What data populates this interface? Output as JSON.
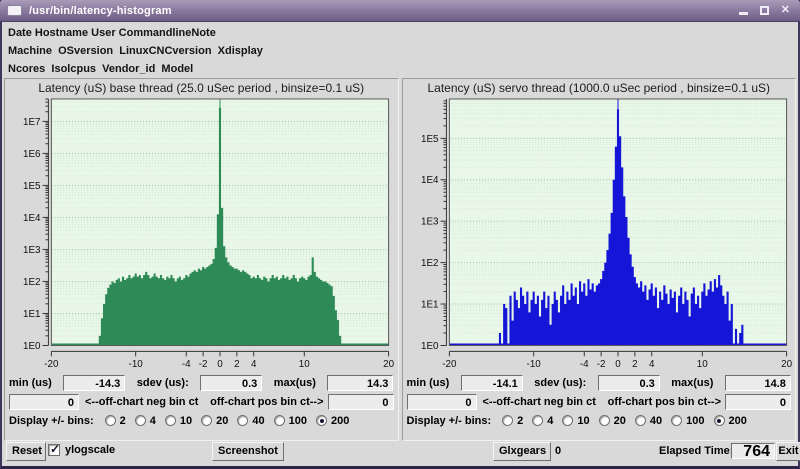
{
  "window": {
    "title": "/usr/bin/latency-histogram",
    "controls": {
      "minimize": "minimize",
      "maximize": "maximize",
      "close": "close"
    }
  },
  "header_lines": [
    "Date Hostname User CommandlineNote",
    "Machine  OSversion  LinuxCNCversion  Xdisplay",
    "Ncores  Isolcpus  Vendor_id  Model"
  ],
  "panels": [
    {
      "min_label": "min (us)",
      "min_value": "-14.3",
      "sdev_label": "sdev (us):",
      "sdev_value": "0.3",
      "max_label": "max(us)",
      "max_value": "14.3",
      "neg_ct_value": "0",
      "neg_ct_label": "<--off-chart neg bin ct",
      "pos_ct_label": "off-chart pos bin ct-->",
      "pos_ct_value": "0",
      "bins_label": "Display +/- bins:",
      "bins_options": [
        "2",
        "4",
        "10",
        "20",
        "40",
        "100",
        "200"
      ],
      "bins_selected": "200"
    },
    {
      "min_label": "min (us)",
      "min_value": "-14.1",
      "sdev_label": "sdev (us):",
      "sdev_value": "0.3",
      "max_label": "max(us)",
      "max_value": "14.8",
      "neg_ct_value": "0",
      "neg_ct_label": "<--off-chart neg bin ct",
      "pos_ct_label": "off-chart pos bin ct-->",
      "pos_ct_value": "0",
      "bins_label": "Display +/- bins:",
      "bins_options": [
        "2",
        "4",
        "10",
        "20",
        "40",
        "100",
        "200"
      ],
      "bins_selected": "200"
    }
  ],
  "footer": {
    "reset": "Reset",
    "ylogscale_label": "ylogscale",
    "ylogscale_checked": true,
    "screenshot": "Screenshot",
    "glxgears": "Glxgears",
    "glxgears_value": "0",
    "elapsed_label": "Elapsed Time:",
    "elapsed_value": "764",
    "exit": "Exit"
  },
  "chart_data": [
    {
      "type": "bar",
      "title": "Latency (uS) base thread (25.0 uSec period , binsize=0.1 uS)",
      "series_color": "#2e8b57",
      "plot_bg": "#e8f7e8",
      "grid": true,
      "x_axis": {
        "range": [
          -20,
          20
        ],
        "tick_labels": [
          -20,
          -10,
          -4,
          -2,
          0,
          2,
          4,
          10,
          20
        ],
        "unit": "uS"
      },
      "y_axis": {
        "scale": "log",
        "tick_labels": [
          "1E7",
          "1E6",
          "1E5",
          "1E4",
          "1E3",
          "1E2",
          "1E1",
          "1E0"
        ],
        "top_log10": 7.7
      },
      "bins": {
        "start": -20,
        "step": 0.25,
        "log10_counts": [
          0,
          0,
          0,
          0,
          0,
          0,
          0,
          0,
          0,
          0,
          0,
          0,
          0,
          0,
          0,
          0,
          0,
          0,
          0,
          0,
          0,
          0,
          0,
          0.3,
          0.85,
          1.3,
          1.6,
          1.8,
          1.9,
          2.0,
          1.95,
          2.05,
          2.1,
          2.0,
          2.15,
          2.05,
          2.1,
          2.2,
          2.1,
          2.15,
          2.25,
          2.15,
          2.2,
          2.1,
          2.2,
          2.3,
          2.2,
          2.1,
          2.15,
          2.25,
          2.15,
          2.1,
          2.2,
          2.1,
          2.05,
          2.15,
          2.1,
          2.2,
          2.1,
          2.0,
          2.1,
          2.15,
          2.05,
          2.1,
          2.2,
          2.15,
          2.25,
          2.3,
          2.35,
          2.3,
          2.4,
          2.35,
          2.45,
          2.4,
          2.45,
          2.5,
          2.55,
          2.7,
          3.05,
          4.1,
          7.42,
          4.3,
          3.1,
          2.75,
          2.6,
          2.5,
          2.45,
          2.4,
          2.4,
          2.35,
          2.3,
          2.35,
          2.3,
          2.25,
          2.2,
          2.1,
          2.15,
          2.1,
          2.2,
          2.1,
          2.05,
          2.15,
          2.1,
          2.0,
          2.1,
          2.2,
          2.1,
          2.15,
          2.05,
          2.1,
          2.2,
          2.1,
          2.15,
          2.05,
          2.1,
          2.2,
          2.1,
          2.0,
          2.1,
          2.15,
          2.1,
          2.05,
          2.15,
          2.2,
          2.75,
          2.3,
          2.15,
          2.1,
          2.05,
          2.0,
          2.0,
          1.95,
          1.9,
          1.85,
          1.55,
          1.1,
          0.8,
          0.3,
          0,
          0,
          0,
          0,
          0,
          0,
          0,
          0,
          0,
          0,
          0,
          0,
          0,
          0,
          0,
          0,
          0,
          0,
          0,
          0,
          0,
          0,
          0
        ]
      },
      "stats": {
        "min_us": -14.3,
        "sdev_us": 0.3,
        "max_us": 14.3,
        "off_chart_neg": 0,
        "off_chart_pos": 0
      }
    },
    {
      "type": "bar",
      "title": "Latency (uS) servo thread (1000.0 uSec period , binsize=0.1 uS)",
      "series_color": "#1515d8",
      "plot_bg": "#e8f7e8",
      "grid": true,
      "x_axis": {
        "range": [
          -20,
          20
        ],
        "tick_labels": [
          -20,
          -10,
          -4,
          -2,
          0,
          2,
          4,
          10,
          20
        ],
        "unit": "uS"
      },
      "y_axis": {
        "scale": "log",
        "tick_labels": [
          "1E5",
          "1E4",
          "1E3",
          "1E2",
          "1E1",
          "1E0"
        ],
        "top_log10": 5.95
      },
      "bins": {
        "start": -20,
        "step": 0.25,
        "log10_counts": [
          0,
          0,
          0,
          0,
          0,
          0,
          0,
          0,
          0,
          0,
          0,
          0,
          0,
          0,
          0,
          0,
          0,
          0,
          0,
          0,
          0,
          0,
          0,
          0,
          0.3,
          0,
          1.0,
          0.9,
          0,
          1.2,
          0.6,
          1.3,
          1.1,
          0.9,
          1.4,
          1.2,
          1.0,
          1.3,
          0.8,
          1.1,
          1.3,
          1.0,
          1.2,
          0.7,
          1.1,
          1.3,
          0.9,
          1.2,
          0.5,
          1.0,
          1.3,
          1.1,
          0.8,
          1.2,
          1.45,
          1.0,
          1.3,
          1.1,
          1.5,
          1.2,
          1.4,
          1.0,
          1.55,
          1.3,
          1.5,
          1.2,
          1.6,
          1.35,
          1.5,
          1.3,
          1.45,
          1.5,
          1.6,
          1.8,
          2.0,
          2.3,
          2.7,
          3.2,
          4.0,
          4.8,
          5.7,
          5.05,
          4.3,
          3.6,
          3.1,
          2.6,
          2.2,
          1.9,
          1.65,
          1.5,
          1.4,
          1.55,
          1.3,
          1.45,
          1.1,
          1.35,
          1.5,
          1.2,
          1.4,
          0.9,
          1.3,
          1.1,
          1.45,
          1.25,
          1.0,
          1.35,
          1.15,
          1.3,
          0.8,
          1.2,
          1.4,
          1.0,
          1.3,
          1.1,
          0.7,
          1.25,
          1.4,
          1.0,
          1.2,
          0.9,
          1.3,
          1.5,
          1.2,
          1.35,
          1.55,
          1.3,
          1.6,
          1.4,
          1.7,
          1.45,
          1.2,
          1.0,
          1.3,
          0.6,
          1.0,
          0,
          0.4,
          0,
          0.3,
          0.5,
          0,
          0,
          0,
          0,
          0,
          0,
          0,
          0,
          0,
          0,
          0,
          0,
          0,
          0,
          0,
          0,
          0,
          0,
          0,
          0,
          0
        ]
      },
      "stats": {
        "min_us": -14.1,
        "sdev_us": 0.3,
        "max_us": 14.8,
        "off_chart_neg": 0,
        "off_chart_pos": 0
      }
    }
  ]
}
